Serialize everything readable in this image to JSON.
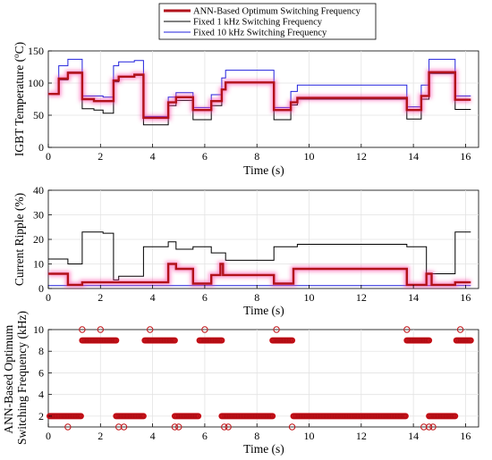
{
  "legend": {
    "items": [
      {
        "label": "ANN-Based Optimum Switching Frequency",
        "color": "#b2121b"
      },
      {
        "label": "Fixed 1 kHz Switching Frequency",
        "color": "#000000"
      },
      {
        "label": "Fixed 10 kHz Switching Frequency",
        "color": "#2222dd"
      }
    ]
  },
  "chart_data": [
    {
      "type": "line",
      "xlabel": "Time (s)",
      "ylabel": "IGBT Temperature (°C)",
      "ylabel_parts": [
        "IGBT Temperature (",
        "o",
        "C)"
      ],
      "xlim": [
        0,
        16.5
      ],
      "ylim": [
        0,
        150
      ],
      "xticks": [
        0,
        2,
        4,
        6,
        8,
        10,
        12,
        14,
        16
      ],
      "yticks": [
        0,
        50,
        100,
        150
      ],
      "grid": true,
      "series": [
        {
          "name": "ANN-Based Optimum Switching Frequency",
          "color": "#b2121b",
          "glow": true,
          "x": [
            0,
            0.4,
            0.4,
            0.75,
            0.75,
            1.3,
            1.3,
            1.75,
            1.75,
            2.5,
            2.5,
            2.7,
            2.7,
            3.3,
            3.3,
            3.65,
            3.65,
            4.6,
            4.6,
            4.9,
            4.9,
            5.55,
            5.55,
            6.25,
            6.25,
            6.65,
            6.65,
            6.8,
            6.8,
            8.65,
            8.65,
            9.3,
            9.3,
            9.55,
            9.55,
            13.75,
            13.75,
            14.3,
            14.3,
            14.6,
            14.6,
            15.6,
            15.6,
            16.2
          ],
          "y": [
            83,
            83,
            107,
            107,
            116,
            116,
            75,
            75,
            72,
            72,
            104,
            104,
            110,
            110,
            113,
            113,
            46,
            46,
            70,
            70,
            78,
            78,
            58,
            58,
            72,
            72,
            90,
            90,
            101,
            101,
            58,
            58,
            70,
            70,
            77,
            77,
            58,
            58,
            80,
            80,
            117,
            117,
            74,
            74
          ]
        },
        {
          "name": "Fixed 1 kHz Switching Frequency",
          "color": "#000000",
          "x": [
            0,
            0.4,
            0.4,
            0.75,
            0.75,
            1.3,
            1.3,
            1.75,
            1.75,
            2.1,
            2.1,
            2.5,
            2.5,
            2.7,
            2.7,
            3.3,
            3.3,
            3.65,
            3.65,
            4.6,
            4.6,
            4.9,
            4.9,
            5.55,
            5.55,
            6.25,
            6.25,
            6.65,
            6.65,
            6.8,
            6.8,
            8.65,
            8.65,
            9.3,
            9.3,
            9.55,
            9.55,
            13.75,
            13.75,
            14.3,
            14.3,
            14.6,
            14.6,
            15.6,
            15.6,
            16.2
          ],
          "y": [
            83,
            83,
            105,
            105,
            117,
            117,
            60,
            60,
            58,
            58,
            53,
            53,
            102,
            102,
            109,
            109,
            112,
            112,
            35,
            35,
            65,
            65,
            73,
            73,
            43,
            43,
            65,
            65,
            90,
            90,
            100,
            100,
            43,
            43,
            66,
            66,
            75,
            75,
            44,
            44,
            75,
            75,
            115,
            115,
            59,
            59
          ]
        },
        {
          "name": "Fixed 10 kHz Switching Frequency",
          "color": "#2222dd",
          "x": [
            0,
            0.4,
            0.4,
            0.75,
            0.75,
            1.3,
            1.3,
            2.1,
            2.1,
            2.5,
            2.5,
            2.7,
            2.7,
            3.3,
            3.3,
            3.65,
            3.65,
            4.6,
            4.6,
            4.9,
            4.9,
            5.55,
            5.55,
            6.25,
            6.25,
            6.65,
            6.65,
            6.8,
            6.8,
            8.65,
            8.65,
            9.3,
            9.3,
            9.55,
            9.55,
            13.75,
            13.75,
            14.3,
            14.3,
            14.6,
            14.6,
            15.6,
            15.6,
            16.2
          ],
          "y": [
            83,
            83,
            127,
            127,
            137,
            137,
            80,
            80,
            78,
            78,
            127,
            127,
            133,
            133,
            135,
            135,
            48,
            48,
            78,
            78,
            85,
            85,
            62,
            62,
            82,
            82,
            108,
            108,
            120,
            120,
            62,
            62,
            87,
            87,
            97,
            97,
            63,
            63,
            97,
            97,
            137,
            137,
            80,
            80
          ]
        }
      ]
    },
    {
      "type": "line",
      "xlabel": "Time (s)",
      "ylabel": "Current Ripple (%)",
      "xlim": [
        0,
        16.5
      ],
      "ylim": [
        0,
        40
      ],
      "xticks": [
        0,
        2,
        4,
        6,
        8,
        10,
        12,
        14,
        16
      ],
      "yticks": [
        0,
        10,
        20,
        30,
        40
      ],
      "grid": true,
      "series": [
        {
          "name": "ANN-Based Optimum Switching Frequency",
          "color": "#b2121b",
          "glow": true,
          "x": [
            0,
            0.75,
            0.75,
            1.3,
            1.3,
            2.5,
            2.5,
            3.65,
            3.65,
            4.6,
            4.6,
            4.9,
            4.9,
            5.55,
            5.55,
            6.25,
            6.25,
            6.6,
            6.6,
            6.7,
            6.7,
            6.8,
            6.8,
            8.65,
            8.65,
            9.4,
            9.4,
            13.75,
            13.75,
            14.5,
            14.5,
            14.7,
            14.7,
            15.6,
            15.6,
            16.2
          ],
          "y": [
            6,
            6,
            1.5,
            1.5,
            2.5,
            2.5,
            2.5,
            2.5,
            2.5,
            2.5,
            10,
            10,
            8,
            8,
            2,
            2,
            5.5,
            5.5,
            10,
            10,
            5.5,
            5.5,
            5.5,
            5.5,
            2,
            2,
            8,
            8,
            1.5,
            1.5,
            6,
            6,
            1.5,
            1.5,
            2.5,
            2.5
          ]
        },
        {
          "name": "Fixed 1 kHz Switching Frequency",
          "color": "#000000",
          "x": [
            0,
            0.75,
            0.75,
            1.3,
            1.3,
            2.1,
            2.1,
            2.5,
            2.5,
            2.7,
            2.7,
            3.65,
            3.65,
            4.6,
            4.6,
            4.9,
            4.9,
            5.55,
            5.55,
            6.25,
            6.25,
            6.8,
            6.8,
            8.65,
            8.65,
            9.55,
            9.55,
            13.75,
            13.75,
            14.5,
            14.5,
            15.6,
            15.6,
            16.2
          ],
          "y": [
            12,
            12,
            10,
            10,
            23,
            23,
            22.5,
            22.5,
            3.5,
            3.5,
            5,
            5,
            17,
            17,
            19,
            19,
            16,
            16,
            17,
            17,
            14.5,
            14.5,
            11.5,
            11.5,
            17,
            17,
            18,
            18,
            17,
            17,
            6,
            6,
            23,
            23
          ]
        },
        {
          "name": "Fixed 10 kHz Switching Frequency",
          "color": "#2222dd",
          "x": [
            0,
            16.2
          ],
          "y": [
            1.2,
            1.2
          ]
        }
      ]
    },
    {
      "type": "scatter",
      "xlabel": "Time (s)",
      "ylabel": "ANN-Based Optimum Switching Frequency (kHz)",
      "ylabel_lines": [
        "ANN-Based Optimum",
        "Switching Frequency (kHz)"
      ],
      "xlim": [
        0,
        16.5
      ],
      "ylim": [
        1,
        10
      ],
      "xticks": [
        0,
        2,
        4,
        6,
        8,
        10,
        12,
        14,
        16
      ],
      "yticks": [
        2,
        4,
        6,
        8,
        10
      ],
      "grid": true,
      "segments": [
        {
          "x0": 0.05,
          "x1": 1.25,
          "y": 2
        },
        {
          "x0": 1.3,
          "x1": 2.6,
          "y": 9
        },
        {
          "x0": 2.6,
          "x1": 3.65,
          "y": 2
        },
        {
          "x0": 3.7,
          "x1": 4.85,
          "y": 9
        },
        {
          "x0": 4.85,
          "x1": 5.75,
          "y": 2
        },
        {
          "x0": 5.8,
          "x1": 6.65,
          "y": 9
        },
        {
          "x0": 6.65,
          "x1": 8.6,
          "y": 2
        },
        {
          "x0": 8.6,
          "x1": 9.35,
          "y": 9
        },
        {
          "x0": 9.4,
          "x1": 13.7,
          "y": 2
        },
        {
          "x0": 13.75,
          "x1": 14.6,
          "y": 9
        },
        {
          "x0": 14.6,
          "x1": 15.6,
          "y": 2
        },
        {
          "x0": 15.65,
          "x1": 16.2,
          "y": 9
        }
      ],
      "outliers": {
        "x": [
          0.75,
          1.3,
          2.0,
          2.7,
          2.9,
          3.9,
          4.85,
          5.0,
          6.0,
          6.75,
          6.9,
          8.75,
          9.35,
          13.75,
          14.4,
          14.6,
          14.75,
          15.8
        ],
        "y": [
          1,
          10,
          10,
          1,
          1,
          10,
          1,
          1,
          10,
          1,
          1,
          10,
          1,
          10,
          1,
          1,
          1,
          10
        ]
      }
    }
  ]
}
